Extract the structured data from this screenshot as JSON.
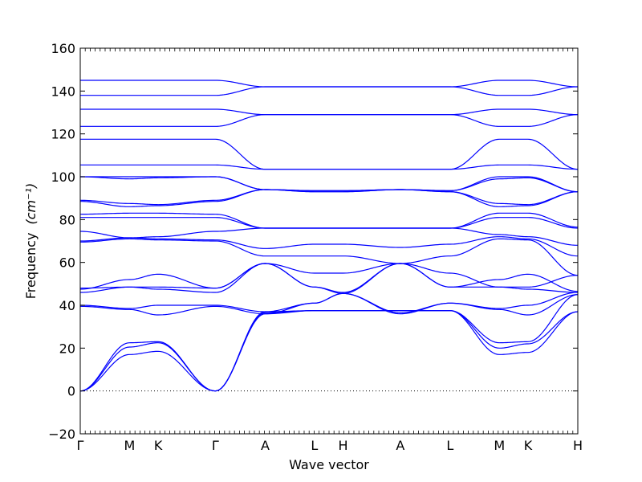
{
  "chart_data": {
    "type": "line",
    "xlabel": "Wave vector",
    "ylabel": "Frequency",
    "ylabel_unit": "(cm⁻¹)",
    "ylim": [
      -20,
      160
    ],
    "y_ticks": [
      -20,
      0,
      20,
      40,
      60,
      80,
      100,
      120,
      140,
      160
    ],
    "zero_line": "dotted",
    "grid": false,
    "legend": "none",
    "line_color": "#0000ff",
    "high_symmetry_points": [
      {
        "label": "Γ",
        "x": 0.0
      },
      {
        "label": "M",
        "x": 1.0
      },
      {
        "label": "K",
        "x": 1.58
      },
      {
        "label": "Γ",
        "x": 2.74
      },
      {
        "label": "A",
        "x": 3.75
      },
      {
        "label": "L",
        "x": 4.75
      },
      {
        "label": "H",
        "x": 5.33
      },
      {
        "label": "A",
        "x": 6.49
      },
      {
        "label": "L",
        "x": 7.5
      },
      {
        "label": "M",
        "x": 8.5
      },
      {
        "label": "K",
        "x": 9.08
      },
      {
        "label": "H",
        "x": 10.09
      }
    ],
    "series": [
      {
        "values": [
          0,
          17,
          18.5,
          0,
          36,
          37.5,
          37.5,
          37.5,
          37.5,
          17,
          18,
          37
        ]
      },
      {
        "values": [
          0,
          20.5,
          22.5,
          0,
          36.5,
          37.5,
          37.5,
          37.5,
          37.5,
          20,
          22,
          37
        ]
      },
      {
        "values": [
          0,
          22.5,
          23,
          0,
          37,
          37.5,
          37.5,
          37.5,
          37.5,
          22.5,
          23,
          45
        ]
      },
      {
        "values": [
          39.5,
          38,
          35.5,
          39.5,
          36,
          41,
          45.5,
          36,
          41,
          38,
          35.5,
          45
        ]
      },
      {
        "values": [
          40,
          38.5,
          40,
          40,
          37,
          41,
          45.5,
          36.5,
          41,
          38.5,
          40,
          46
        ]
      },
      {
        "values": [
          46,
          48.5,
          47.5,
          46,
          59.5,
          48.5,
          45.5,
          59.5,
          48.5,
          48.5,
          47.5,
          46
        ]
      },
      {
        "values": [
          47.5,
          52,
          54.5,
          48,
          59.5,
          48.5,
          46,
          59.5,
          48.5,
          52,
          54.5,
          46.5
        ]
      },
      {
        "values": [
          48,
          48.5,
          48.5,
          48,
          59.5,
          55,
          55,
          59.5,
          55,
          48.5,
          48.5,
          54
        ]
      },
      {
        "values": [
          69.5,
          71,
          70.5,
          70,
          63,
          63,
          63,
          59.5,
          63,
          71,
          70.5,
          54
        ]
      },
      {
        "values": [
          70,
          71.5,
          71,
          70.5,
          66.5,
          68.5,
          68.5,
          67,
          68.5,
          72,
          71,
          63
        ]
      },
      {
        "values": [
          74.5,
          71.5,
          72,
          74.5,
          76,
          76,
          76,
          76,
          76,
          73,
          72,
          68
        ]
      },
      {
        "values": [
          81,
          81,
          81,
          81,
          76,
          76,
          76,
          76,
          76,
          81,
          81,
          76
        ]
      },
      {
        "values": [
          82.5,
          83,
          83,
          82.5,
          76,
          76,
          76,
          76,
          76,
          83,
          83,
          76.5
        ]
      },
      {
        "values": [
          88.5,
          86,
          86.5,
          88.5,
          94,
          93,
          93,
          94,
          93,
          86,
          86.5,
          93
        ]
      },
      {
        "values": [
          89,
          87.5,
          87,
          89,
          94,
          93,
          93,
          94,
          93,
          87.5,
          87,
          93
        ]
      },
      {
        "values": [
          100,
          99,
          99.5,
          100,
          94,
          93.5,
          93.5,
          94,
          93.5,
          99,
          99.5,
          93
        ]
      },
      {
        "values": [
          100,
          100,
          100,
          100,
          94,
          93.5,
          93.5,
          94,
          93.5,
          100,
          100,
          93
        ]
      },
      {
        "values": [
          105.5,
          105.5,
          105.5,
          105.5,
          103.5,
          103.5,
          103.5,
          103.5,
          103.5,
          105.5,
          105.5,
          103.5
        ]
      },
      {
        "values": [
          117.5,
          117.5,
          117.5,
          117.5,
          103.5,
          103.5,
          103.5,
          103.5,
          103.5,
          117.5,
          117.5,
          103.5
        ]
      },
      {
        "values": [
          123.5,
          123.5,
          123.5,
          123.5,
          129,
          129,
          129,
          129,
          129,
          123.5,
          123.5,
          129
        ]
      },
      {
        "values": [
          131.5,
          131.5,
          131.5,
          131.5,
          129,
          129,
          129,
          129,
          129,
          131.5,
          131.5,
          129
        ]
      },
      {
        "values": [
          138,
          138,
          138,
          138,
          142,
          142,
          142,
          142,
          142,
          138,
          138,
          142
        ]
      },
      {
        "values": [
          145,
          145,
          145,
          145,
          142,
          142,
          142,
          142,
          142,
          145,
          145,
          142
        ]
      }
    ]
  }
}
